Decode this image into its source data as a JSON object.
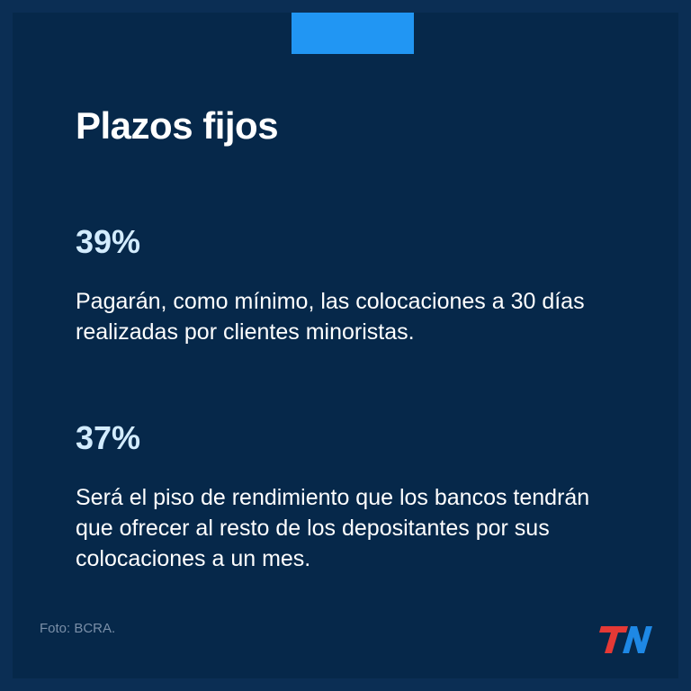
{
  "title": "Plazos fijos",
  "stats": [
    {
      "value": "39%",
      "text": "Pagarán, como mínimo, las colocaciones a 30 días realizadas por clientes minoristas."
    },
    {
      "value": "37%",
      "text": "Será el piso de rendimiento que los bancos tendrán que ofrecer al resto de los depositantes por sus colocaciones a un mes."
    }
  ],
  "credit": "Foto: BCRA.",
  "logo": {
    "text": "TN",
    "icon": "tn-logo-icon"
  },
  "colors": {
    "background": "#06284a",
    "accent": "#2196f3",
    "stat_value": "#d3ecff",
    "logo_red": "#e53935",
    "logo_blue": "#1e88e5"
  }
}
